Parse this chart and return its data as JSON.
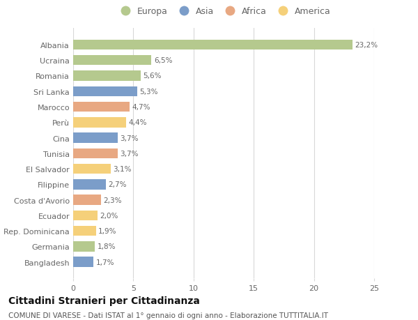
{
  "categories": [
    "Albania",
    "Ucraina",
    "Romania",
    "Sri Lanka",
    "Marocco",
    "Perù",
    "Cina",
    "Tunisia",
    "El Salvador",
    "Filippine",
    "Costa d'Avorio",
    "Ecuador",
    "Rep. Dominicana",
    "Germania",
    "Bangladesh"
  ],
  "values": [
    23.2,
    6.5,
    5.6,
    5.3,
    4.7,
    4.4,
    3.7,
    3.7,
    3.1,
    2.7,
    2.3,
    2.0,
    1.9,
    1.8,
    1.7
  ],
  "labels": [
    "23,2%",
    "6,5%",
    "5,6%",
    "5,3%",
    "4,7%",
    "4,4%",
    "3,7%",
    "3,7%",
    "3,1%",
    "2,7%",
    "2,3%",
    "2,0%",
    "1,9%",
    "1,8%",
    "1,7%"
  ],
  "bar_colors": [
    "#b5c98e",
    "#b5c98e",
    "#b5c98e",
    "#7b9dc9",
    "#e8a882",
    "#f5d07a",
    "#7b9dc9",
    "#e8a882",
    "#f5d07a",
    "#7b9dc9",
    "#e8a882",
    "#f5d07a",
    "#f5d07a",
    "#b5c98e",
    "#7b9dc9"
  ],
  "legend_labels": [
    "Europa",
    "Asia",
    "Africa",
    "America"
  ],
  "legend_colors": [
    "#b5c98e",
    "#7b9dc9",
    "#e8a882",
    "#f5d07a"
  ],
  "title": "Cittadini Stranieri per Cittadinanza",
  "subtitle": "COMUNE DI VARESE - Dati ISTAT al 1° gennaio di ogni anno - Elaborazione TUTTITALIA.IT",
  "xlim": [
    0,
    25
  ],
  "xticks": [
    0,
    5,
    10,
    15,
    20,
    25
  ],
  "background_color": "#ffffff",
  "grid_color": "#d8d8d8",
  "bar_height": 0.65,
  "title_fontsize": 10,
  "subtitle_fontsize": 7.5,
  "label_fontsize": 7.5,
  "tick_fontsize": 8,
  "legend_fontsize": 9
}
